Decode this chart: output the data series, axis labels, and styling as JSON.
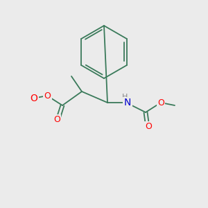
{
  "bg_color": "#ebebeb",
  "bond_color": "#3a7a5a",
  "atom_colors": {
    "O": "#ff0000",
    "N": "#0000cc",
    "H": "#888888",
    "C": "#3a7a5a"
  },
  "font_size_atom": 9,
  "font_size_label": 9,
  "bond_lw": 1.3
}
